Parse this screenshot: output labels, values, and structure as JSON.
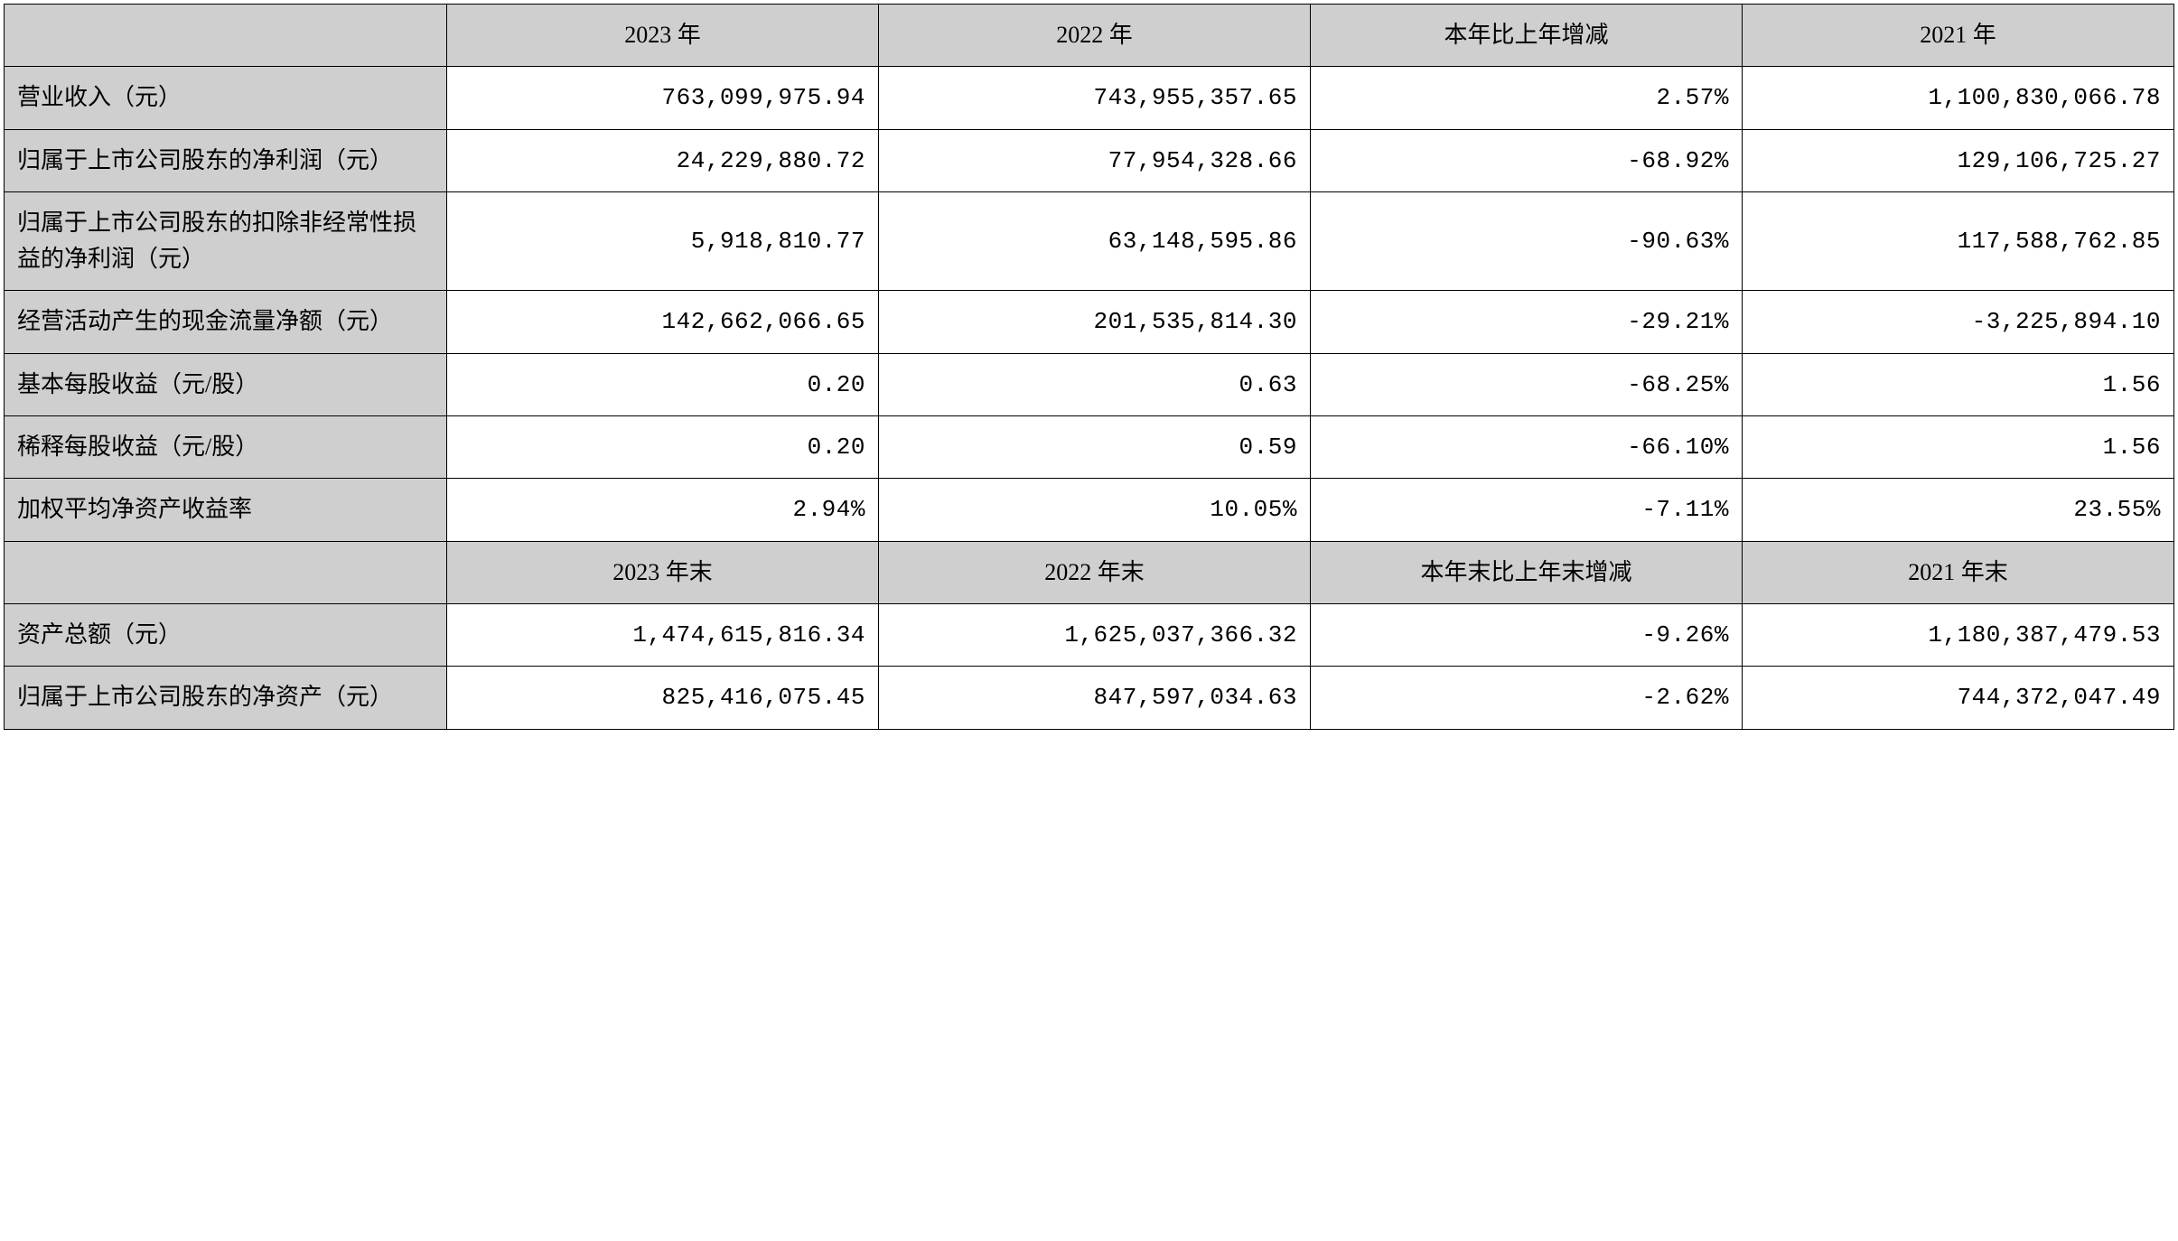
{
  "table": {
    "colors": {
      "header_bg": "#cfcfcf",
      "cell_bg": "#ffffff",
      "border": "#000000",
      "text": "#000000"
    },
    "fontsize": 26,
    "column_widths_pct": [
      20.4,
      19.9,
      19.9,
      19.9,
      19.9
    ],
    "header1": {
      "c0": "",
      "c1": "2023 年",
      "c2": "2022 年",
      "c3": "本年比上年增减",
      "c4": "2021 年"
    },
    "rows1": [
      {
        "label": "营业收入（元）",
        "c1": "763,099,975.94",
        "c2": "743,955,357.65",
        "c3": "2.57%",
        "c4": "1,100,830,066.78"
      },
      {
        "label": "归属于上市公司股东的净利润（元）",
        "c1": "24,229,880.72",
        "c2": "77,954,328.66",
        "c3": "-68.92%",
        "c4": "129,106,725.27"
      },
      {
        "label": "归属于上市公司股东的扣除非经常性损益的净利润（元）",
        "c1": "5,918,810.77",
        "c2": "63,148,595.86",
        "c3": "-90.63%",
        "c4": "117,588,762.85"
      },
      {
        "label": "经营活动产生的现金流量净额（元）",
        "c1": "142,662,066.65",
        "c2": "201,535,814.30",
        "c3": "-29.21%",
        "c4": "-3,225,894.10"
      },
      {
        "label": "基本每股收益（元/股）",
        "c1": "0.20",
        "c2": "0.63",
        "c3": "-68.25%",
        "c4": "1.56"
      },
      {
        "label": "稀释每股收益（元/股）",
        "c1": "0.20",
        "c2": "0.59",
        "c3": "-66.10%",
        "c4": "1.56"
      },
      {
        "label": "加权平均净资产收益率",
        "c1": "2.94%",
        "c2": "10.05%",
        "c3": "-7.11%",
        "c4": "23.55%"
      }
    ],
    "header2": {
      "c0": "",
      "c1": "2023 年末",
      "c2": "2022 年末",
      "c3": "本年末比上年末增减",
      "c4": "2021 年末"
    },
    "rows2": [
      {
        "label": "资产总额（元）",
        "c1": "1,474,615,816.34",
        "c2": "1,625,037,366.32",
        "c3": "-9.26%",
        "c4": "1,180,387,479.53"
      },
      {
        "label": "归属于上市公司股东的净资产（元）",
        "c1": "825,416,075.45",
        "c2": "847,597,034.63",
        "c3": "-2.62%",
        "c4": "744,372,047.49"
      }
    ]
  }
}
